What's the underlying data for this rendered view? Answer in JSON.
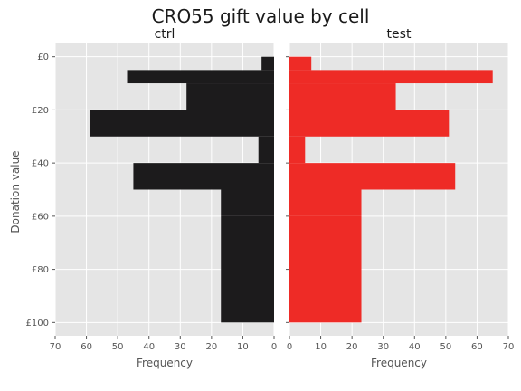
{
  "suptitle": "CRO55 gift value by cell",
  "ylabel": "Donation value",
  "chart_data": [
    {
      "type": "bar",
      "orientation": "horizontal",
      "x_axis_reversed": true,
      "title": "ctrl",
      "xlabel": "Frequency",
      "ylabel": "Donation value",
      "xlim": [
        0,
        70
      ],
      "ylim": [
        0,
        100
      ],
      "y_inverted": true,
      "x_ticks": [
        70,
        60,
        50,
        40,
        30,
        20,
        10,
        0
      ],
      "y_ticks": [
        "£0",
        "£20",
        "£40",
        "£60",
        "£80",
        "£100"
      ],
      "bin_edges": [
        0,
        5,
        10,
        20,
        30,
        40,
        50,
        60,
        100
      ],
      "values": [
        4,
        47,
        28,
        59,
        5,
        45,
        17,
        17
      ],
      "color": "#1c1b1c",
      "grid": true,
      "legend": "none"
    },
    {
      "type": "bar",
      "orientation": "horizontal",
      "title": "test",
      "xlabel": "Frequency",
      "xlim": [
        0,
        70
      ],
      "ylim": [
        0,
        100
      ],
      "y_inverted": true,
      "x_ticks": [
        0,
        10,
        20,
        30,
        40,
        50,
        60,
        70
      ],
      "bin_edges": [
        0,
        5,
        10,
        20,
        30,
        40,
        50,
        60,
        100
      ],
      "values": [
        7,
        65,
        34,
        51,
        5,
        53,
        23,
        23
      ],
      "color": "#ee2b26",
      "grid": true,
      "legend": "none"
    }
  ]
}
